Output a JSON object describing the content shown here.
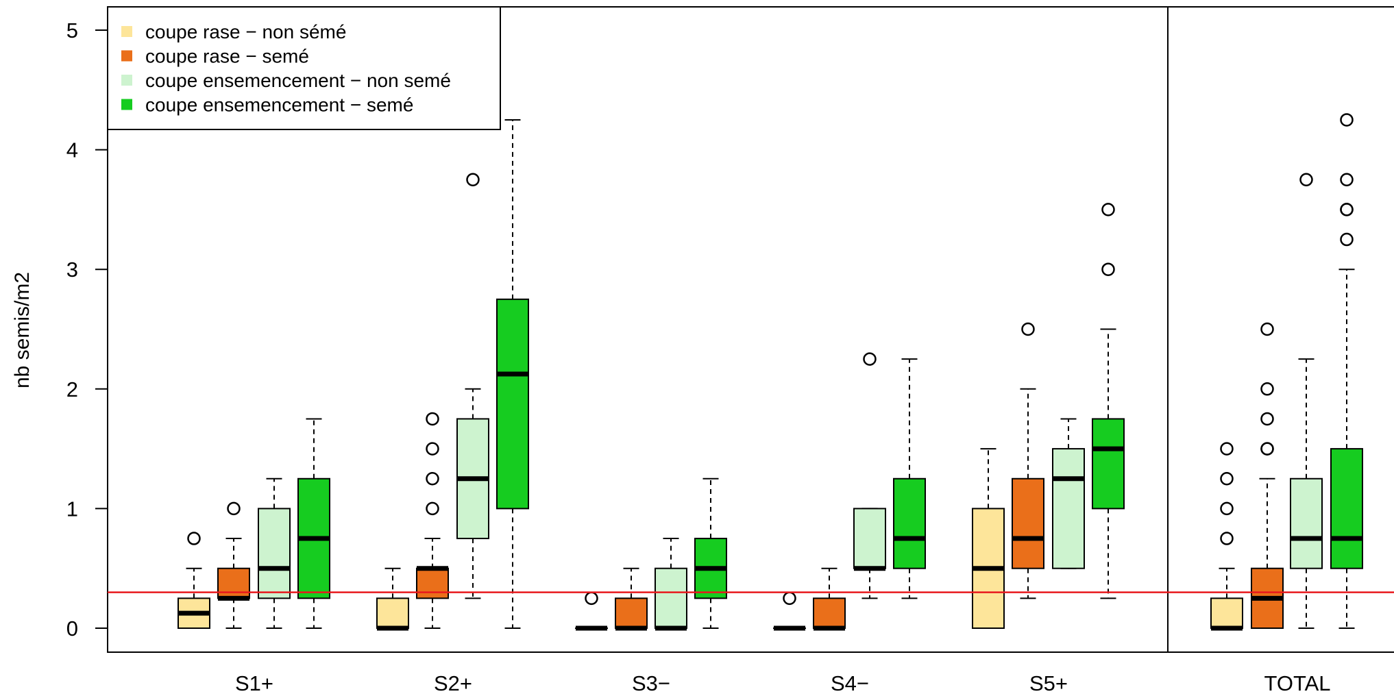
{
  "chart_data": {
    "type": "boxplot",
    "ylabel": "nb semis/m2",
    "ylim": [
      -0.2,
      5.2
    ],
    "yticks": [
      "0",
      "1",
      "2",
      "3",
      "4",
      "5"
    ],
    "reference_line": {
      "y": 0.3,
      "color": "#e8191d"
    },
    "categories": [
      "S1+",
      "S2+",
      "S3−",
      "S4−",
      "S5+",
      "TOTAL"
    ],
    "legend": {
      "position": "top-left",
      "entries": [
        {
          "label": "coupe rase − non sémé",
          "color": "#fde59a"
        },
        {
          "label": "coupe rase − semé",
          "color": "#ea6f1a"
        },
        {
          "label": "coupe ensemencement − non semé",
          "color": "#cdf3cf"
        },
        {
          "label": "coupe ensemencement − semé",
          "color": "#16cc20"
        }
      ]
    },
    "groups": [
      {
        "category": "S1+",
        "boxes": [
          {
            "q1": 0,
            "median": 0.125,
            "q3": 0.25,
            "whisker_low": 0,
            "whisker_high": 0.5,
            "outliers": [
              0.75
            ]
          },
          {
            "q1": 0.25,
            "median": 0.25,
            "q3": 0.5,
            "whisker_low": 0,
            "whisker_high": 0.75,
            "outliers": [
              1.0
            ]
          },
          {
            "q1": 0.25,
            "median": 0.5,
            "q3": 1.0,
            "whisker_low": 0,
            "whisker_high": 1.25,
            "outliers": []
          },
          {
            "q1": 0.25,
            "median": 0.75,
            "q3": 1.25,
            "whisker_low": 0,
            "whisker_high": 1.75,
            "outliers": []
          }
        ]
      },
      {
        "category": "S2+",
        "boxes": [
          {
            "q1": 0,
            "median": 0,
            "q3": 0.25,
            "whisker_low": 0,
            "whisker_high": 0.5,
            "outliers": []
          },
          {
            "q1": 0.25,
            "median": 0.5,
            "q3": 0.5,
            "whisker_low": 0,
            "whisker_high": 0.75,
            "outliers": [
              1.0,
              1.25,
              1.5,
              1.75
            ]
          },
          {
            "q1": 0.75,
            "median": 1.25,
            "q3": 1.75,
            "whisker_low": 0.25,
            "whisker_high": 2.0,
            "outliers": [
              3.75
            ]
          },
          {
            "q1": 1.0,
            "median": 2.125,
            "q3": 2.75,
            "whisker_low": 0,
            "whisker_high": 4.25,
            "outliers": []
          }
        ]
      },
      {
        "category": "S3−",
        "boxes": [
          {
            "q1": 0,
            "median": 0,
            "q3": 0,
            "whisker_low": 0,
            "whisker_high": 0,
            "outliers": [
              0.25
            ]
          },
          {
            "q1": 0,
            "median": 0,
            "q3": 0.25,
            "whisker_low": 0,
            "whisker_high": 0.5,
            "outliers": []
          },
          {
            "q1": 0,
            "median": 0,
            "q3": 0.5,
            "whisker_low": 0,
            "whisker_high": 0.75,
            "outliers": []
          },
          {
            "q1": 0.25,
            "median": 0.5,
            "q3": 0.75,
            "whisker_low": 0,
            "whisker_high": 1.25,
            "outliers": []
          }
        ]
      },
      {
        "category": "S4−",
        "boxes": [
          {
            "q1": 0,
            "median": 0,
            "q3": 0,
            "whisker_low": 0,
            "whisker_high": 0,
            "outliers": [
              0.25
            ]
          },
          {
            "q1": 0,
            "median": 0,
            "q3": 0.25,
            "whisker_low": 0,
            "whisker_high": 0.5,
            "outliers": []
          },
          {
            "q1": 0.5,
            "median": 0.5,
            "q3": 1.0,
            "whisker_low": 0.25,
            "whisker_high": 1.0,
            "outliers": [
              2.25
            ]
          },
          {
            "q1": 0.5,
            "median": 0.75,
            "q3": 1.25,
            "whisker_low": 0.25,
            "whisker_high": 2.25,
            "outliers": []
          }
        ]
      },
      {
        "category": "S5+",
        "boxes": [
          {
            "q1": 0,
            "median": 0.5,
            "q3": 1.0,
            "whisker_low": 0,
            "whisker_high": 1.5,
            "outliers": []
          },
          {
            "q1": 0.5,
            "median": 0.75,
            "q3": 1.25,
            "whisker_low": 0.25,
            "whisker_high": 2.0,
            "outliers": [
              2.5
            ]
          },
          {
            "q1": 0.5,
            "median": 1.25,
            "q3": 1.5,
            "whisker_low": 0.5,
            "whisker_high": 1.75,
            "outliers": []
          },
          {
            "q1": 1.0,
            "median": 1.5,
            "q3": 1.75,
            "whisker_low": 0.25,
            "whisker_high": 2.5,
            "outliers": [
              3.0,
              3.5
            ]
          }
        ]
      },
      {
        "category": "TOTAL",
        "boxes": [
          {
            "q1": 0,
            "median": 0,
            "q3": 0.25,
            "whisker_low": 0,
            "whisker_high": 0.5,
            "outliers": [
              0.75,
              1.0,
              1.25,
              1.5
            ]
          },
          {
            "q1": 0,
            "median": 0.25,
            "q3": 0.5,
            "whisker_low": 0,
            "whisker_high": 1.25,
            "outliers": [
              1.5,
              1.5,
              1.75,
              2.0,
              2.5
            ]
          },
          {
            "q1": 0.5,
            "median": 0.75,
            "q3": 1.25,
            "whisker_low": 0,
            "whisker_high": 2.25,
            "outliers": [
              3.75
            ]
          },
          {
            "q1": 0.5,
            "median": 0.75,
            "q3": 1.5,
            "whisker_low": 0,
            "whisker_high": 3.0,
            "outliers": [
              3.25,
              3.5,
              3.5,
              3.75,
              4.25
            ]
          }
        ]
      }
    ]
  }
}
